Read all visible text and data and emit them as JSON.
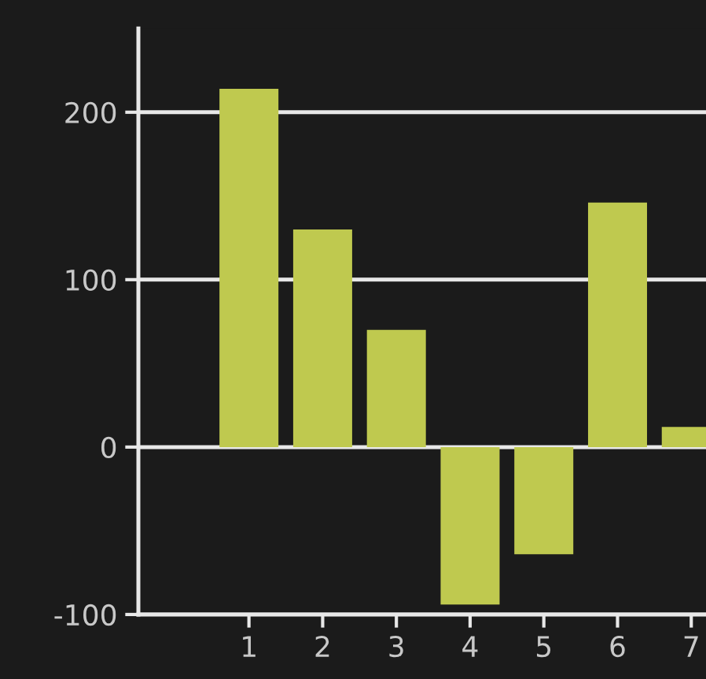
{
  "chart_data": {
    "type": "bar",
    "x": [
      1,
      2,
      3,
      4,
      5,
      6,
      7
    ],
    "values": [
      214,
      130,
      70,
      -94,
      -64,
      146,
      12
    ],
    "color": "#bfc94f",
    "xlim": [
      -0.5,
      7.2
    ],
    "xticks": [
      1,
      2,
      3,
      4,
      5,
      6,
      7
    ],
    "ylim": [
      -100,
      250
    ],
    "yticks": [
      -100,
      0,
      100,
      200
    ],
    "grid": "y"
  }
}
